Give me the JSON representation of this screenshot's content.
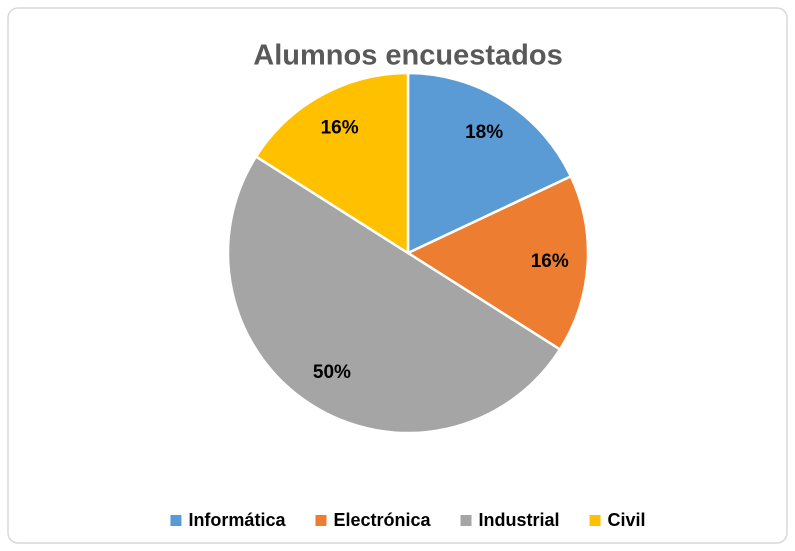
{
  "chart_data": {
    "type": "pie",
    "title": "Alumnos encuestados",
    "categories": [
      "Informática",
      "Electrónica",
      "Industrial",
      "Civil"
    ],
    "values": [
      18,
      16,
      50,
      16
    ],
    "value_labels": [
      "18%",
      "16%",
      "50%",
      "16%"
    ],
    "colors": [
      "#5b9bd5",
      "#ed7d31",
      "#a5a5a5",
      "#ffc000"
    ],
    "legend": "bottom"
  }
}
